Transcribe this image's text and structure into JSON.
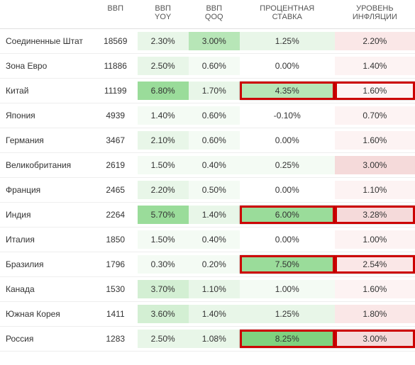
{
  "columns": [
    {
      "key": "country",
      "label": "",
      "width": 128,
      "align": "left"
    },
    {
      "key": "gdp",
      "label": "ВВП",
      "width": 60,
      "align": "center"
    },
    {
      "key": "yoy",
      "label": "ВВП\nYOY",
      "width": 70,
      "align": "center"
    },
    {
      "key": "qoq",
      "label": "ВВП\nQOQ",
      "width": 70,
      "align": "center"
    },
    {
      "key": "rate",
      "label": "ПРОЦЕНТНАЯ\nСТАВКА",
      "width": 130,
      "align": "center"
    },
    {
      "key": "infl",
      "label": "УРОВЕНЬ\nИНФЛЯЦИИ",
      "width": 110,
      "align": "center"
    }
  ],
  "shade_palette": {
    "none": "transparent",
    "g0": "#f4fbf4",
    "g1": "#e8f6e8",
    "g2": "#d3efd3",
    "g3": "#b7e6b7",
    "g4": "#9adc9a",
    "g5": "#7fd27f",
    "r0": "#fdf3f3",
    "r1": "#fae7e7",
    "r2": "#f5dada"
  },
  "highlight_border_color": "#c00",
  "rows": [
    {
      "country": "Соединенные Штат",
      "gdp": "18569",
      "yoy": {
        "v": "2.30%",
        "s": "g1"
      },
      "qoq": {
        "v": "3.00%",
        "s": "g3"
      },
      "rate": {
        "v": "1.25%",
        "s": "g1",
        "hl": false
      },
      "infl": {
        "v": "2.20%",
        "s": "r1",
        "hl": false
      }
    },
    {
      "country": "Зона Евро",
      "gdp": "11886",
      "yoy": {
        "v": "2.50%",
        "s": "g1"
      },
      "qoq": {
        "v": "0.60%",
        "s": "g0"
      },
      "rate": {
        "v": "0.00%",
        "s": "none",
        "hl": false
      },
      "infl": {
        "v": "1.40%",
        "s": "r0",
        "hl": false
      }
    },
    {
      "country": "Китай",
      "gdp": "11199",
      "yoy": {
        "v": "6.80%",
        "s": "g4"
      },
      "qoq": {
        "v": "1.70%",
        "s": "g1"
      },
      "rate": {
        "v": "4.35%",
        "s": "g3",
        "hl": true
      },
      "infl": {
        "v": "1.60%",
        "s": "r0",
        "hl": true
      }
    },
    {
      "country": "Япония",
      "gdp": "4939",
      "yoy": {
        "v": "1.40%",
        "s": "g0"
      },
      "qoq": {
        "v": "0.60%",
        "s": "g0"
      },
      "rate": {
        "v": "-0.10%",
        "s": "none",
        "hl": false
      },
      "infl": {
        "v": "0.70%",
        "s": "r0",
        "hl": false
      }
    },
    {
      "country": "Германия",
      "gdp": "3467",
      "yoy": {
        "v": "2.10%",
        "s": "g1"
      },
      "qoq": {
        "v": "0.60%",
        "s": "g0"
      },
      "rate": {
        "v": "0.00%",
        "s": "none",
        "hl": false
      },
      "infl": {
        "v": "1.60%",
        "s": "r0",
        "hl": false
      }
    },
    {
      "country": "Великобритания",
      "gdp": "2619",
      "yoy": {
        "v": "1.50%",
        "s": "g0"
      },
      "qoq": {
        "v": "0.40%",
        "s": "g0"
      },
      "rate": {
        "v": "0.25%",
        "s": "g0",
        "hl": false
      },
      "infl": {
        "v": "3.00%",
        "s": "r2",
        "hl": false
      }
    },
    {
      "country": "Франция",
      "gdp": "2465",
      "yoy": {
        "v": "2.20%",
        "s": "g1"
      },
      "qoq": {
        "v": "0.50%",
        "s": "g0"
      },
      "rate": {
        "v": "0.00%",
        "s": "none",
        "hl": false
      },
      "infl": {
        "v": "1.10%",
        "s": "r0",
        "hl": false
      }
    },
    {
      "country": "Индия",
      "gdp": "2264",
      "yoy": {
        "v": "5.70%",
        "s": "g4"
      },
      "qoq": {
        "v": "1.40%",
        "s": "g1"
      },
      "rate": {
        "v": "6.00%",
        "s": "g4",
        "hl": true
      },
      "infl": {
        "v": "3.28%",
        "s": "r2",
        "hl": true
      }
    },
    {
      "country": "Италия",
      "gdp": "1850",
      "yoy": {
        "v": "1.50%",
        "s": "g0"
      },
      "qoq": {
        "v": "0.40%",
        "s": "g0"
      },
      "rate": {
        "v": "0.00%",
        "s": "none",
        "hl": false
      },
      "infl": {
        "v": "1.00%",
        "s": "r0",
        "hl": false
      }
    },
    {
      "country": "Бразилия",
      "gdp": "1796",
      "yoy": {
        "v": "0.30%",
        "s": "g0"
      },
      "qoq": {
        "v": "0.20%",
        "s": "g0"
      },
      "rate": {
        "v": "7.50%",
        "s": "g4",
        "hl": true
      },
      "infl": {
        "v": "2.54%",
        "s": "r1",
        "hl": true
      }
    },
    {
      "country": "Канада",
      "gdp": "1530",
      "yoy": {
        "v": "3.70%",
        "s": "g2"
      },
      "qoq": {
        "v": "1.10%",
        "s": "g1"
      },
      "rate": {
        "v": "1.00%",
        "s": "g0",
        "hl": false
      },
      "infl": {
        "v": "1.60%",
        "s": "r0",
        "hl": false
      }
    },
    {
      "country": "Южная Корея",
      "gdp": "1411",
      "yoy": {
        "v": "3.60%",
        "s": "g2"
      },
      "qoq": {
        "v": "1.40%",
        "s": "g1"
      },
      "rate": {
        "v": "1.25%",
        "s": "g1",
        "hl": false
      },
      "infl": {
        "v": "1.80%",
        "s": "r1",
        "hl": false
      }
    },
    {
      "country": "Россия",
      "gdp": "1283",
      "yoy": {
        "v": "2.50%",
        "s": "g1"
      },
      "qoq": {
        "v": "1.08%",
        "s": "g1"
      },
      "rate": {
        "v": "8.25%",
        "s": "g5",
        "hl": true
      },
      "infl": {
        "v": "3.00%",
        "s": "r2",
        "hl": true
      }
    }
  ]
}
